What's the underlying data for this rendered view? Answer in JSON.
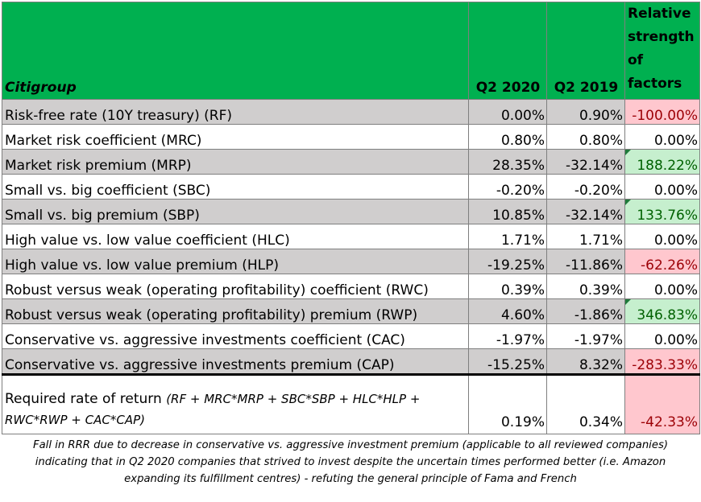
{
  "table": {
    "title": "Citigroup",
    "col_q2_2020": "Q2 2020",
    "col_q2_2019": "Q2 2019",
    "col_relative": "Relative strength of factors",
    "rows": [
      {
        "label": "Risk-free rate (10Y treasury) (RF)",
        "q2020": "0.00%",
        "q2019": "0.90%",
        "relative": "-100.00%",
        "status": "neg"
      },
      {
        "label": "Market risk coefficient (MRC)",
        "q2020": "0.80%",
        "q2019": "0.80%",
        "relative": "0.00%",
        "status": "zero"
      },
      {
        "label": "Market risk premium (MRP)",
        "q2020": "28.35%",
        "q2019": "-32.14%",
        "relative": "188.22%",
        "status": "pos"
      },
      {
        "label": "Small vs. big coefficient (SBC)",
        "q2020": "-0.20%",
        "q2019": "-0.20%",
        "relative": "0.00%",
        "status": "zero"
      },
      {
        "label": "Small vs. big premium (SBP)",
        "q2020": "10.85%",
        "q2019": "-32.14%",
        "relative": "133.76%",
        "status": "pos"
      },
      {
        "label": "High value vs. low value coefficient (HLC)",
        "q2020": "1.71%",
        "q2019": "1.71%",
        "relative": "0.00%",
        "status": "zero"
      },
      {
        "label": "High value vs. low value premium (HLP)",
        "q2020": "-19.25%",
        "q2019": "-11.86%",
        "relative": "-62.26%",
        "status": "neg"
      },
      {
        "label": "Robust versus weak (operating profitability) coefficient (RWC)",
        "q2020": "0.39%",
        "q2019": "0.39%",
        "relative": "0.00%",
        "status": "zero"
      },
      {
        "label": "Robust versus weak (operating profitability) premium (RWP)",
        "q2020": "4.60%",
        "q2019": "-1.86%",
        "relative": "346.83%",
        "status": "pos"
      },
      {
        "label": "Conservative vs. aggressive investments coefficient (CAC)",
        "q2020": "-1.97%",
        "q2019": "-1.97%",
        "relative": "0.00%",
        "status": "zero"
      },
      {
        "label": "Conservative vs. aggressive investments premium (CAP)",
        "q2020": "-15.25%",
        "q2019": "8.32%",
        "relative": "-283.33%",
        "status": "neg"
      }
    ],
    "rrr": {
      "label": "Required rate of return",
      "formula": "(RF + MRC*MRP + SBC*SBP + HLC*HLP + RWC*RWP + CAC*CAP)",
      "q2020": "0.19%",
      "q2019": "0.34%",
      "relative": "-42.33%"
    }
  },
  "footnote": "Fall in RRR due to decrease in conservative vs. aggressive investment premium (applicable to all reviewed companies) indicating that in Q2 2020 companies that strived to invest despite the uncertain times performed better (i.e. Amazon expanding its fulfillment centres) - refuting the general principle of Fama and French",
  "colors": {
    "header_green": "#00b050",
    "shaded_row": "#d0cece",
    "negative_fill": "#ffc7ce",
    "negative_text": "#9c0006",
    "positive_fill": "#c6efce",
    "positive_text": "#006100"
  }
}
